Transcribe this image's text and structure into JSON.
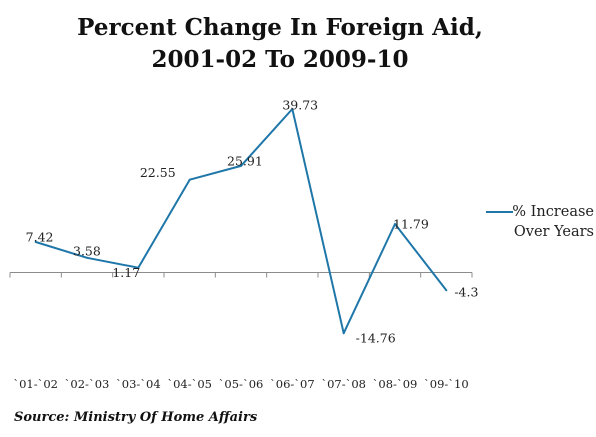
{
  "chart_data": {
    "type": "line",
    "title_lines": [
      "Percent Change In Foreign Aid,",
      "2001-02 To 2009-10"
    ],
    "categories": [
      "`01-`02",
      "`02-`03",
      "`03-`04",
      "`04-`05",
      "`05-`06",
      "`06-`07",
      "`07-`08",
      "`08-`09",
      "`09-`10"
    ],
    "series": [
      {
        "name": "% Increase Over Years",
        "values": [
          7.42,
          3.58,
          1.17,
          22.55,
          25.91,
          39.73,
          -14.76,
          11.79,
          -4.3
        ],
        "labels": [
          "7.42",
          "3.58",
          "1.17",
          "22.55",
          "25.91",
          "39.73",
          "-14.76",
          "11.79",
          "-4.3"
        ],
        "color": "#1f77a9"
      }
    ],
    "ylim": [
      -20,
      40
    ],
    "grid": false,
    "legend_position": "right",
    "legend_lines": [
      "% Increase",
      "Over Years"
    ]
  },
  "source": "Source: Ministry Of Home Affairs"
}
